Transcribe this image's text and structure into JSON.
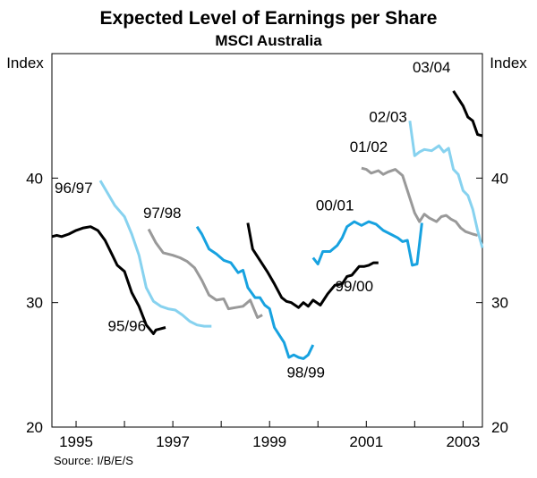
{
  "chart_data": {
    "type": "line",
    "title": "Expected Level of Earnings per Share",
    "subtitle": "MSCI Australia",
    "ylabel_left": "Index",
    "ylabel_right": "Index",
    "source": "Source: I/B/E/S",
    "x_ticks": [
      "1995",
      "1997",
      "1999",
      "2001",
      "2003"
    ],
    "xlim": [
      1994.5,
      2003.4
    ],
    "ylim": [
      20,
      50
    ],
    "y_ticks": [
      20,
      30,
      40
    ],
    "grid": false,
    "series": [
      {
        "name": "95/96",
        "color": "#000000",
        "x": [
          1994.5,
          1994.6,
          1994.7,
          1994.85,
          1995.0,
          1995.15,
          1995.3,
          1995.45,
          1995.6,
          1995.75,
          1995.85,
          1996.0,
          1996.15,
          1996.3,
          1996.45,
          1996.6,
          1996.65,
          1996.75,
          1996.85
        ],
        "y": [
          35.3,
          35.4,
          35.3,
          35.5,
          35.8,
          36.0,
          36.1,
          35.8,
          35.0,
          33.8,
          33.0,
          32.5,
          30.8,
          29.7,
          28.2,
          27.5,
          27.8,
          27.9,
          28.0
        ]
      },
      {
        "name": "96/97",
        "color": "#87d2ef",
        "x": [
          1995.5,
          1995.65,
          1995.8,
          1996.0,
          1996.15,
          1996.3,
          1996.45,
          1996.6,
          1996.75,
          1996.9,
          1997.05,
          1997.2,
          1997.35,
          1997.5,
          1997.65,
          1997.8
        ],
        "y": [
          39.8,
          38.8,
          37.8,
          36.9,
          35.5,
          33.8,
          31.2,
          30.1,
          29.7,
          29.5,
          29.4,
          29.0,
          28.5,
          28.2,
          28.1,
          28.1
        ]
      },
      {
        "name": "97/98",
        "color": "#999999",
        "x": [
          1996.5,
          1996.65,
          1996.8,
          1997.0,
          1997.15,
          1997.3,
          1997.45,
          1997.6,
          1997.75,
          1997.9,
          1998.05,
          1998.15,
          1998.3,
          1998.45,
          1998.6,
          1998.75,
          1998.85
        ],
        "y": [
          35.9,
          34.8,
          34.0,
          33.8,
          33.6,
          33.3,
          32.8,
          31.8,
          30.6,
          30.2,
          30.3,
          29.5,
          29.6,
          29.7,
          30.2,
          28.8,
          29.0
        ]
      },
      {
        "name": "98/99",
        "color": "#17a2e0",
        "x": [
          1997.5,
          1997.6,
          1997.75,
          1997.9,
          1998.05,
          1998.2,
          1998.35,
          1998.45,
          1998.55,
          1998.7,
          1998.8,
          1998.9,
          1999.0,
          1999.1,
          1999.2,
          1999.3,
          1999.4,
          1999.5,
          1999.6,
          1999.7,
          1999.8,
          1999.9
        ],
        "y": [
          36.1,
          35.5,
          34.3,
          33.9,
          33.4,
          33.2,
          32.4,
          32.6,
          31.2,
          30.4,
          30.4,
          29.8,
          29.5,
          28.0,
          27.4,
          26.8,
          25.6,
          25.8,
          25.6,
          25.5,
          25.8,
          26.6
        ]
      },
      {
        "name": "99/00",
        "color": "#000000",
        "x": [
          1998.55,
          1998.65,
          1998.8,
          1998.95,
          1999.1,
          1999.25,
          1999.35,
          1999.45,
          1999.6,
          1999.7,
          1999.8,
          1999.9,
          2000.05,
          2000.2,
          2000.35,
          2000.5,
          2000.6,
          2000.7,
          2000.85,
          2000.95,
          2001.05,
          2001.15,
          2001.25
        ],
        "y": [
          36.4,
          34.3,
          33.4,
          32.5,
          31.5,
          30.4,
          30.1,
          30.0,
          29.6,
          30.0,
          29.7,
          30.2,
          29.8,
          30.7,
          31.4,
          31.5,
          32.1,
          32.2,
          32.9,
          32.9,
          33.0,
          33.2,
          33.2
        ]
      },
      {
        "name": "00/01",
        "color": "#17a2e0",
        "x": [
          1999.9,
          2000.0,
          2000.1,
          2000.25,
          2000.4,
          2000.5,
          2000.6,
          2000.75,
          2000.9,
          2001.05,
          2001.2,
          2001.35,
          2001.5,
          2001.65,
          2001.75,
          2001.85,
          2001.95,
          2002.05,
          2002.15
        ],
        "y": [
          33.6,
          33.1,
          34.1,
          34.1,
          34.6,
          35.2,
          36.1,
          36.5,
          36.2,
          36.5,
          36.3,
          35.8,
          35.5,
          35.2,
          34.9,
          35.0,
          33.0,
          33.1,
          36.4
        ]
      },
      {
        "name": "01/02",
        "color": "#999999",
        "x": [
          2000.9,
          2001.0,
          2001.1,
          2001.25,
          2001.35,
          2001.45,
          2001.6,
          2001.75,
          2001.9,
          2002.0,
          2002.1,
          2002.2,
          2002.3,
          2002.45,
          2002.55,
          2002.65,
          2002.75,
          2002.85,
          2002.95,
          2003.05,
          2003.2,
          2003.3
        ],
        "y": [
          40.8,
          40.7,
          40.4,
          40.6,
          40.3,
          40.5,
          40.7,
          40.2,
          38.4,
          37.2,
          36.5,
          37.1,
          36.8,
          36.5,
          36.9,
          37.0,
          36.7,
          36.5,
          36.0,
          35.7,
          35.5,
          35.4
        ]
      },
      {
        "name": "02/03",
        "color": "#87d2ef",
        "x": [
          2001.9,
          2002.0,
          2002.1,
          2002.2,
          2002.35,
          2002.5,
          2002.6,
          2002.7,
          2002.8,
          2002.9,
          2003.0,
          2003.1,
          2003.2,
          2003.3,
          2003.4
        ],
        "y": [
          44.6,
          41.8,
          42.1,
          42.3,
          42.2,
          42.6,
          42.1,
          42.4,
          40.7,
          40.3,
          39.0,
          38.6,
          37.5,
          35.8,
          34.4
        ]
      },
      {
        "name": "03/04",
        "color": "#000000",
        "x": [
          2002.8,
          2002.9,
          2003.0,
          2003.1,
          2003.2,
          2003.3,
          2003.4
        ],
        "y": [
          47.0,
          46.4,
          45.8,
          44.9,
          44.6,
          43.5,
          43.4
        ]
      }
    ],
    "labels": [
      {
        "text": "95/96",
        "x": 1996.05,
        "y": 27.7
      },
      {
        "text": "96/97",
        "x": 1994.95,
        "y": 38.8
      },
      {
        "text": "97/98",
        "x": 1996.78,
        "y": 36.8
      },
      {
        "text": "98/99",
        "x": 1999.75,
        "y": 24.0
      },
      {
        "text": "99/00",
        "x": 2000.75,
        "y": 30.9
      },
      {
        "text": "00/01",
        "x": 2000.35,
        "y": 37.4
      },
      {
        "text": "01/02",
        "x": 2001.05,
        "y": 42.1
      },
      {
        "text": "02/03",
        "x": 2001.45,
        "y": 44.5
      },
      {
        "text": "03/04",
        "x": 2002.35,
        "y": 48.5
      }
    ]
  }
}
